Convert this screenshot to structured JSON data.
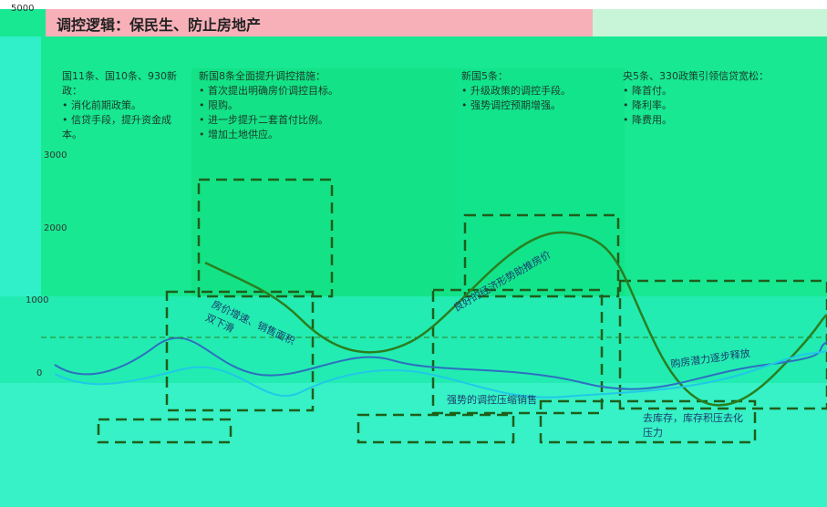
{
  "header": {
    "title": "调控逻辑：保民生、防止房地产"
  },
  "axis": {
    "labels": [
      "5000",
      "3000",
      "2000",
      "1000",
      "0"
    ]
  },
  "panels": [
    {
      "heading": "国11条、国10条、930新政：",
      "items": [
        "消化前期政策。",
        "信贷手段，提升资金成本。"
      ]
    },
    {
      "heading": "新国8条全面提升调控措施：",
      "items": [
        "首次提出明确房价调控目标。",
        "限购。",
        "进一步提升二套首付比例。",
        "增加土地供应。"
      ]
    },
    {
      "heading": "新国5条：",
      "items": [
        "升级政策的调控手段。",
        "强势调控预期增强。"
      ]
    },
    {
      "heading": "央5条、330政策引领信贷宽松：",
      "items": [
        "降首付。",
        "降利率。",
        "降费用。"
      ]
    }
  ],
  "annotations": [
    "房价增速、销售面积双下滑",
    "良好的经济形势助推房价",
    "强势的调控压缩销售",
    "购房潜力逐步释放",
    "去库存，库存积压去化压力"
  ]
}
